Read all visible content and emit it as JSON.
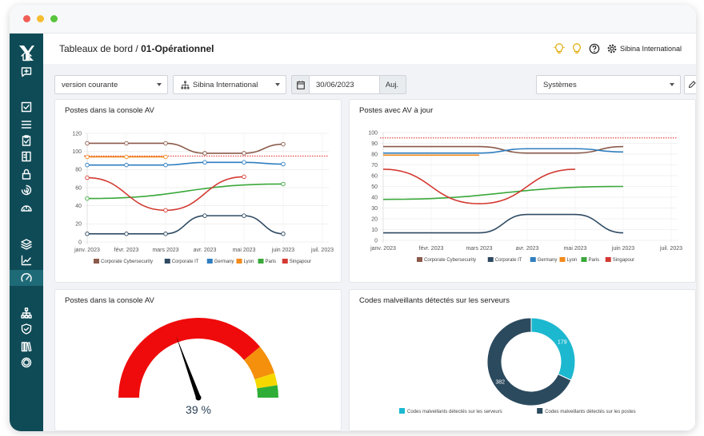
{
  "header": {
    "breadcrumb_root": "Tableaux de bord",
    "breadcrumb_sep": "/",
    "breadcrumb_page": "01-Opérationnel",
    "org_name": "Sibina International"
  },
  "filters": {
    "version": "version courante",
    "org": "Sibina International",
    "date": "30/06/2023",
    "today_button": "Auj.",
    "scope": "Systèmes"
  },
  "colors": {
    "sidebar": "#0f4b57",
    "corporate_cybersecurity": "#8b5a4a",
    "corporate_it": "#2e4a62",
    "germany": "#2f7ec0",
    "lyon": "#f28a1c",
    "paris": "#3aa83a",
    "singapour": "#d33a32",
    "threshold": "#e02020",
    "donut_servers": "#1cb8d0",
    "donut_posts": "#2b4a5e"
  },
  "sidebar_icons": [
    "home-icon",
    "chat-icon",
    "checkbox-icon",
    "list-icon",
    "clipboard-icon",
    "book-icon",
    "lock-icon",
    "fingerprint-icon",
    "dashboard-alert-icon",
    "stack-icon",
    "chart-icon",
    "gauge-icon",
    "hierarchy-icon",
    "shield-icon",
    "library-icon",
    "biohazard-icon"
  ],
  "charts": {
    "c1_title": "Postes dans la console AV",
    "c2_title": "Postes avec AV à jour",
    "c3_title": "Postes dans la console AV",
    "c4_title": "Codes malveillants détectés sur les serveurs",
    "gauge_label": "39 %",
    "legend_servers": "Codes malveillants détectés sur les serveurs",
    "legend_posts": "Codes malveillants détectés sur les postes"
  },
  "chart_data": [
    {
      "type": "line",
      "title": "Postes dans la console AV",
      "x": [
        "janv. 2023",
        "févr. 2023",
        "mars 2023",
        "avr. 2023",
        "mai 2023",
        "juin 2023",
        "juil. 2023"
      ],
      "ylim": [
        0,
        120
      ],
      "yticks": [
        0,
        20,
        40,
        60,
        80,
        100,
        120
      ],
      "threshold": 95,
      "series": [
        {
          "name": "Corporate Cybersecurity",
          "values": [
            109,
            109,
            109,
            98,
            98,
            108,
            null
          ]
        },
        {
          "name": "Corporate IT",
          "values": [
            9,
            9,
            9,
            29,
            29,
            9,
            null
          ]
        },
        {
          "name": "Germany",
          "values": [
            85,
            85,
            85,
            88,
            88,
            86,
            null
          ]
        },
        {
          "name": "Lyon",
          "values": [
            94,
            94,
            94,
            null,
            null,
            null,
            null
          ]
        },
        {
          "name": "Paris",
          "values": [
            48,
            null,
            null,
            null,
            null,
            64,
            null
          ]
        },
        {
          "name": "Singapour",
          "values": [
            71,
            null,
            35,
            null,
            72,
            null,
            null
          ]
        }
      ]
    },
    {
      "type": "line",
      "title": "Postes avec AV à jour",
      "x": [
        "janv. 2023",
        "févr. 2023",
        "mars 2023",
        "avr. 2023",
        "mai 2023",
        "juin 2023",
        "juil. 2023"
      ],
      "ylim": [
        0,
        100
      ],
      "yticks": [
        0,
        10,
        20,
        30,
        40,
        50,
        60,
        70,
        80,
        90,
        100
      ],
      "threshold": 95,
      "series": [
        {
          "name": "Corporate Cybersecurity",
          "values": [
            87,
            87,
            87,
            81,
            81,
            87,
            null
          ]
        },
        {
          "name": "Corporate IT",
          "values": [
            7,
            7,
            7,
            24,
            24,
            7,
            null
          ]
        },
        {
          "name": "Germany",
          "values": [
            81,
            81,
            81,
            85,
            85,
            82,
            null
          ]
        },
        {
          "name": "Lyon",
          "values": [
            79,
            79,
            79,
            null,
            null,
            null,
            null
          ]
        },
        {
          "name": "Paris",
          "values": [
            38,
            null,
            null,
            null,
            null,
            50,
            null
          ]
        },
        {
          "name": "Singapour",
          "values": [
            66,
            null,
            34,
            null,
            66,
            null,
            null
          ]
        }
      ]
    },
    {
      "type": "gauge",
      "title": "Postes dans la console AV",
      "value": 39,
      "unit": "%"
    },
    {
      "type": "pie",
      "title": "Codes malveillants détectés sur les serveurs",
      "categories": [
        "Codes malveillants détectés sur les serveurs",
        "Codes malveillants détectés sur les postes"
      ],
      "values": [
        179,
        382
      ]
    }
  ]
}
